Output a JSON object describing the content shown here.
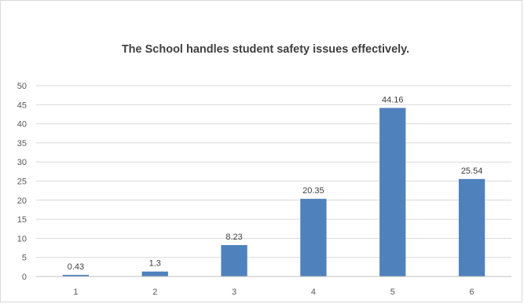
{
  "chart_data": {
    "type": "bar",
    "title": "The School handles student safety issues effectively.",
    "categories": [
      "1",
      "2",
      "3",
      "4",
      "5",
      "6"
    ],
    "values": [
      0.43,
      1.3,
      8.23,
      20.35,
      44.16,
      25.54
    ],
    "data_labels": [
      "0.43",
      "1.3",
      "8.23",
      "20.35",
      "44.16",
      "25.54"
    ],
    "y_ticks": [
      "0",
      "5",
      "10",
      "15",
      "20",
      "25",
      "30",
      "35",
      "40",
      "45",
      "50"
    ],
    "xlabel": "",
    "ylabel": "",
    "ylim": [
      0,
      50
    ],
    "grid": true,
    "legend": "none",
    "bar_color": "#4f81bd",
    "gridline_color": "#d9d9d9"
  }
}
